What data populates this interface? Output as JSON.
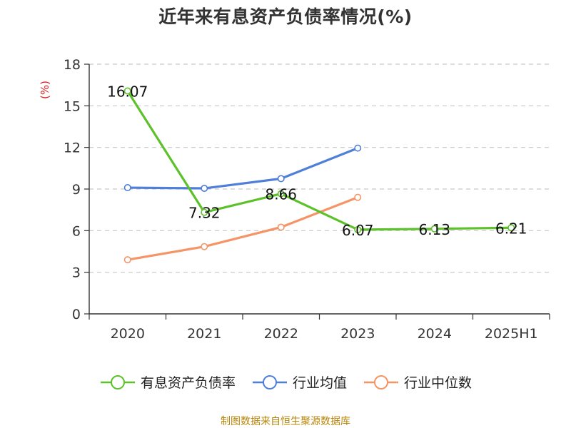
{
  "title": "近年来有息资产负债率情况(%)",
  "source": "制图数据来自恒生聚源数据库",
  "chart_data": {
    "type": "line",
    "title": "近年来有息资产负债率情况(%)",
    "ylabel": "(%)",
    "ylim": [
      0,
      18
    ],
    "yticks": [
      0,
      3,
      6,
      9,
      12,
      15,
      18
    ],
    "grid": true,
    "legend_position": "bottom",
    "categories": [
      "2020",
      "2021",
      "2022",
      "2023",
      "2024",
      "2025H1"
    ],
    "series": [
      {
        "name": "有息资产负债率",
        "color": "#5cc12a",
        "values": [
          16.07,
          7.32,
          8.66,
          6.07,
          6.13,
          6.21
        ],
        "show_labels": true
      },
      {
        "name": "行业均值",
        "color": "#4f7fd8",
        "values": [
          9.1,
          9.05,
          9.75,
          11.95,
          null,
          null
        ],
        "show_labels": false
      },
      {
        "name": "行业中位数",
        "color": "#f59466",
        "values": [
          3.9,
          4.85,
          6.25,
          8.4,
          null,
          null
        ],
        "show_labels": false
      }
    ]
  }
}
